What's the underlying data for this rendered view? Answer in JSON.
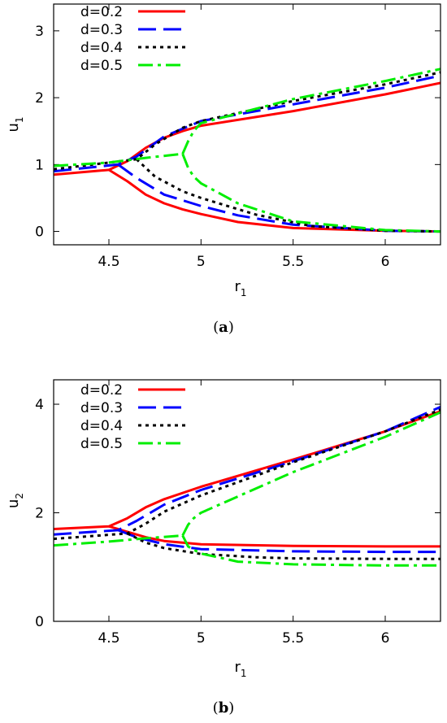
{
  "chart_data": [
    {
      "type": "line",
      "caption_open": "(",
      "caption_letter": "a",
      "caption_close": ")",
      "xlabel_base": "r",
      "xlabel_sub": "1",
      "ylabel_base": "u",
      "ylabel_sub": "1",
      "xlim": [
        4.2,
        6.3
      ],
      "ylim": [
        -0.2,
        3.4
      ],
      "xticks": [
        4.5,
        5,
        5.5,
        6
      ],
      "xtick_labels": [
        "4.5",
        "5",
        "5.5",
        "6"
      ],
      "yticks": [
        0,
        1,
        2,
        3
      ],
      "ytick_labels": [
        "0",
        "1",
        "2",
        "3"
      ],
      "legend_position": "top-left",
      "series": [
        {
          "name": "d=0.2",
          "color": "#ff0000",
          "dash": "solid",
          "branches": [
            {
              "x": [
                4.2,
                4.5,
                4.6,
                4.7,
                4.8,
                4.9,
                5.0,
                5.5,
                6.0,
                6.3
              ],
              "y": [
                0.85,
                0.92,
                1.05,
                1.25,
                1.4,
                1.5,
                1.58,
                1.8,
                2.05,
                2.22
              ]
            },
            {
              "x": [
                4.5,
                4.6,
                4.7,
                4.8,
                4.9,
                5.0,
                5.2,
                5.5,
                6.0,
                6.3
              ],
              "y": [
                0.92,
                0.75,
                0.55,
                0.42,
                0.33,
                0.26,
                0.14,
                0.05,
                0.01,
                0.0
              ]
            }
          ]
        },
        {
          "name": "d=0.3",
          "color": "#0000ff",
          "dash": "long",
          "branches": [
            {
              "x": [
                4.2,
                4.55,
                4.65,
                4.8,
                5.0,
                5.5,
                6.0,
                6.3
              ],
              "y": [
                0.9,
                1.0,
                1.12,
                1.42,
                1.65,
                1.9,
                2.15,
                2.33
              ]
            },
            {
              "x": [
                4.55,
                4.65,
                4.8,
                5.0,
                5.2,
                5.5,
                6.0,
                6.3
              ],
              "y": [
                1.0,
                0.8,
                0.55,
                0.38,
                0.24,
                0.1,
                0.01,
                0.0
              ]
            }
          ]
        },
        {
          "name": "d=0.4",
          "color": "#000000",
          "dash": "dot",
          "branches": [
            {
              "x": [
                4.2,
                4.65,
                4.75,
                4.9,
                5.0,
                5.5,
                6.0,
                6.3
              ],
              "y": [
                0.93,
                1.08,
                1.3,
                1.55,
                1.65,
                1.95,
                2.2,
                2.38
              ]
            },
            {
              "x": [
                4.65,
                4.75,
                4.9,
                5.0,
                5.3,
                5.6,
                6.0,
                6.3
              ],
              "y": [
                1.08,
                0.82,
                0.6,
                0.5,
                0.25,
                0.08,
                0.01,
                0.0
              ]
            }
          ]
        },
        {
          "name": "d=0.5",
          "color": "#00ee00",
          "dash": "dashdot",
          "branches": [
            {
              "x": [
                4.2,
                4.5,
                4.7,
                4.9
              ],
              "y": [
                0.98,
                1.03,
                1.1,
                1.16
              ]
            },
            {
              "x": [
                4.9,
                4.93,
                4.96,
                5.0,
                5.5,
                6.0,
                6.3
              ],
              "y": [
                1.16,
                1.35,
                1.5,
                1.62,
                1.98,
                2.25,
                2.43
              ]
            },
            {
              "x": [
                4.9,
                4.93,
                4.96,
                5.0,
                5.2,
                5.5,
                6.0,
                6.3
              ],
              "y": [
                1.16,
                0.95,
                0.82,
                0.72,
                0.42,
                0.15,
                0.02,
                0.0
              ]
            }
          ]
        }
      ]
    },
    {
      "type": "line",
      "caption_open": "(",
      "caption_letter": "b",
      "caption_close": ")",
      "xlabel_base": "r",
      "xlabel_sub": "1",
      "ylabel_base": "u",
      "ylabel_sub": "2",
      "xlim": [
        4.2,
        6.3
      ],
      "ylim": [
        0,
        4.45
      ],
      "xticks": [
        4.5,
        5,
        5.5,
        6
      ],
      "xtick_labels": [
        "4.5",
        "5",
        "5.5",
        "6"
      ],
      "yticks": [
        0,
        2,
        4
      ],
      "ytick_labels": [
        "0",
        "2",
        "4"
      ],
      "legend_position": "top-left",
      "series": [
        {
          "name": "d=0.2",
          "color": "#ff0000",
          "dash": "solid",
          "branches": [
            {
              "x": [
                4.2,
                4.5,
                4.6,
                4.7,
                4.8,
                5.0,
                5.5,
                6.0,
                6.3
              ],
              "y": [
                1.7,
                1.75,
                1.9,
                2.1,
                2.25,
                2.48,
                2.98,
                3.5,
                3.87
              ]
            },
            {
              "x": [
                4.5,
                4.6,
                4.7,
                4.8,
                5.0,
                5.5,
                6.0,
                6.3
              ],
              "y": [
                1.75,
                1.65,
                1.55,
                1.48,
                1.42,
                1.39,
                1.38,
                1.38
              ]
            }
          ]
        },
        {
          "name": "d=0.3",
          "color": "#0000ff",
          "dash": "long",
          "branches": [
            {
              "x": [
                4.2,
                4.55,
                4.65,
                4.8,
                5.0,
                5.5,
                6.0,
                6.3
              ],
              "y": [
                1.6,
                1.68,
                1.85,
                2.15,
                2.42,
                2.95,
                3.5,
                3.95
              ]
            },
            {
              "x": [
                4.55,
                4.65,
                4.8,
                5.0,
                5.5,
                6.0,
                6.3
              ],
              "y": [
                1.68,
                1.55,
                1.42,
                1.33,
                1.29,
                1.28,
                1.28
              ]
            }
          ]
        },
        {
          "name": "d=0.4",
          "color": "#000000",
          "dash": "dot",
          "branches": [
            {
              "x": [
                4.2,
                4.6,
                4.7,
                4.8,
                5.0,
                5.5,
                6.0,
                6.3
              ],
              "y": [
                1.52,
                1.62,
                1.8,
                2.02,
                2.32,
                2.93,
                3.5,
                3.9
              ]
            },
            {
              "x": [
                4.6,
                4.7,
                4.8,
                5.0,
                5.3,
                5.5,
                6.0,
                6.3
              ],
              "y": [
                1.62,
                1.45,
                1.35,
                1.24,
                1.18,
                1.16,
                1.15,
                1.15
              ]
            }
          ]
        },
        {
          "name": "d=0.5",
          "color": "#00ee00",
          "dash": "dashdot",
          "branches": [
            {
              "x": [
                4.2,
                4.5,
                4.7,
                4.9
              ],
              "y": [
                1.4,
                1.47,
                1.53,
                1.58
              ]
            },
            {
              "x": [
                4.9,
                4.93,
                4.96,
                5.0,
                5.5,
                6.0,
                6.3
              ],
              "y": [
                1.58,
                1.78,
                1.9,
                2.0,
                2.75,
                3.4,
                3.85
              ]
            },
            {
              "x": [
                4.9,
                4.93,
                4.96,
                5.0,
                5.2,
                5.5,
                6.0,
                6.3
              ],
              "y": [
                1.58,
                1.38,
                1.32,
                1.25,
                1.1,
                1.05,
                1.03,
                1.03
              ]
            }
          ]
        }
      ]
    }
  ]
}
